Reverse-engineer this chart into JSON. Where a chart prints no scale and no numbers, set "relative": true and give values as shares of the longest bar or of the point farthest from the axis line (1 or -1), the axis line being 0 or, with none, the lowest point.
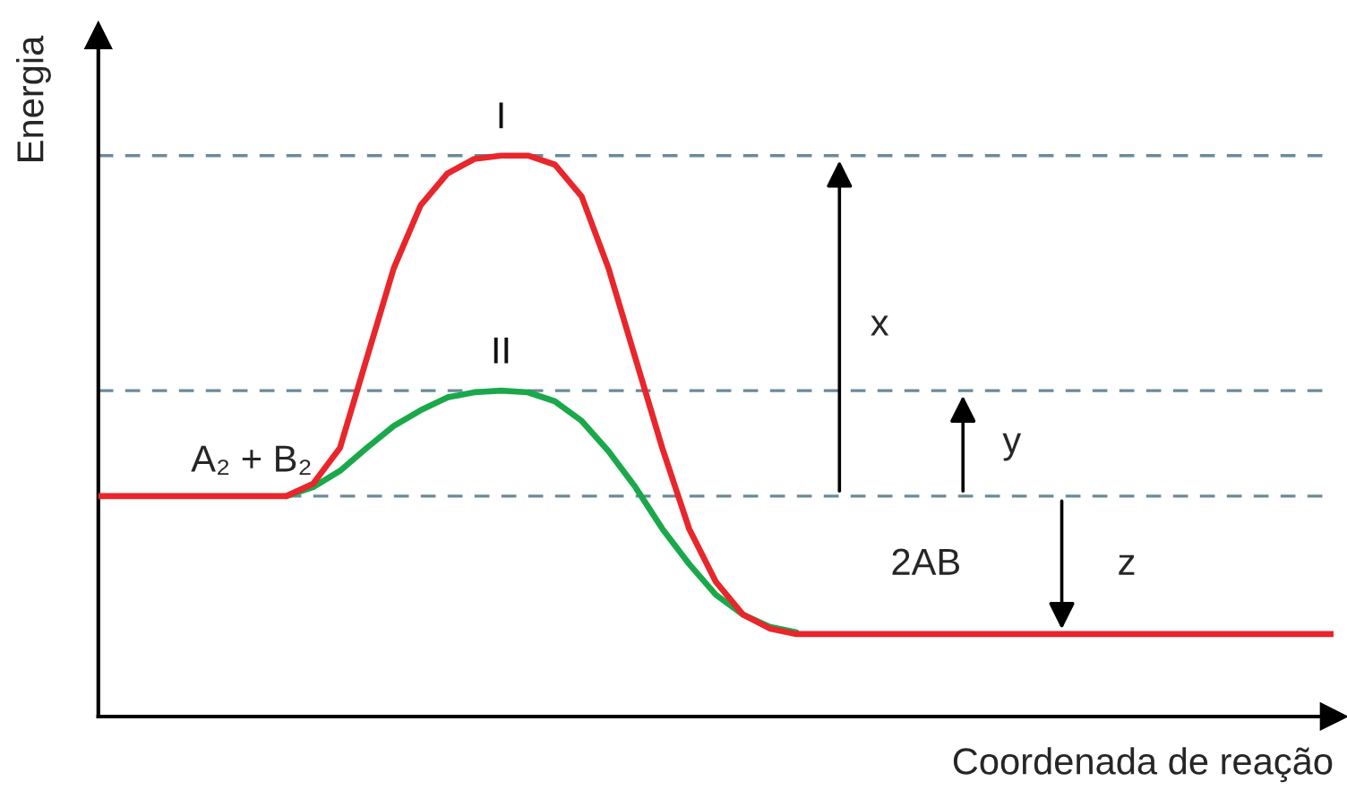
{
  "chart_data": {
    "type": "line",
    "relative": true,
    "xlabel": "Coordenada de reação",
    "ylabel": "Energia",
    "categories": [
      null,
      null,
      null,
      null,
      null,
      null,
      null,
      null,
      null,
      null,
      null,
      null,
      null,
      null,
      null,
      null,
      null,
      null,
      null,
      null,
      null,
      null,
      null,
      null,
      null,
      null,
      null,
      null,
      null,
      null,
      null,
      null,
      null,
      null,
      null,
      null,
      null,
      null,
      null,
      null,
      null,
      null,
      null,
      null,
      null,
      null,
      null
    ],
    "series": [
      {
        "name": "I",
        "color": "#e8262b",
        "values": [
          0.393,
          0.393,
          0.393,
          0.393,
          0.393,
          0.393,
          0.393,
          0.393,
          0.415,
          0.479,
          0.639,
          0.799,
          0.911,
          0.968,
          0.994,
          1,
          1,
          0.984,
          0.927,
          0.799,
          0.639,
          0.479,
          0.335,
          0.24,
          0.182,
          0.157,
          0.147,
          0.147,
          0.147,
          0.147,
          0.147,
          0.147,
          0.147,
          0.147,
          0.147,
          0.147,
          0.147,
          0.147,
          0.147,
          0.147,
          0.147,
          0.147,
          0.147,
          0.147,
          0.147,
          0.147,
          0.147
        ]
      },
      {
        "name": "II",
        "color": "#1aa84b",
        "values": [
          null,
          null,
          null,
          null,
          null,
          null,
          null,
          0.393,
          0.409,
          0.438,
          0.479,
          0.518,
          0.546,
          0.569,
          0.578,
          0.581,
          0.578,
          0.562,
          0.527,
          0.473,
          0.409,
          0.335,
          0.272,
          0.217,
          0.182,
          0.16,
          0.15,
          null,
          null,
          null,
          null,
          null,
          null,
          null,
          null,
          null,
          null,
          null,
          null,
          null,
          null,
          null,
          null,
          null,
          null,
          null,
          null
        ]
      }
    ],
    "ref_lines": [
      {
        "axis": "y",
        "value": 1,
        "color": "#6c8a99",
        "line_style": "dashed"
      },
      {
        "axis": "y",
        "value": 0.581,
        "color": "#6c8a99",
        "line_style": "dashed"
      },
      {
        "axis": "y",
        "value": 0.393,
        "color": "#6c8a99",
        "line_style": "dashed"
      }
    ],
    "annotations": [
      "A₂ + B₂",
      "2AB",
      "x",
      "y",
      "z"
    ],
    "line_style": "solid",
    "legend": false
  }
}
